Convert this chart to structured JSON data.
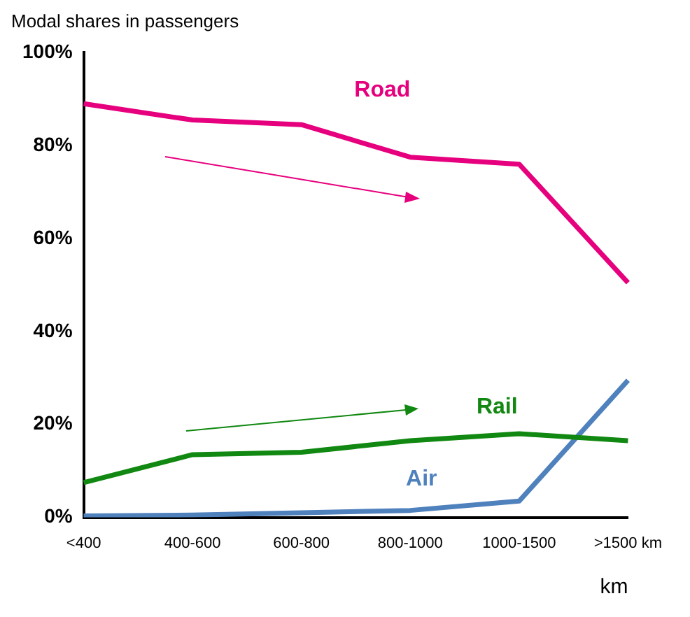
{
  "chart_data": {
    "type": "line",
    "title": "Modal shares in passengers",
    "xlabel": "km",
    "categories": [
      "<400",
      "400-600",
      "600-800",
      "800-1000",
      "1000-1500",
      ">1500 km"
    ],
    "series": [
      {
        "name": "Road",
        "color": "#e6007e",
        "values": [
          89,
          85.5,
          84.5,
          77.5,
          76,
          50.5
        ]
      },
      {
        "name": "Rail",
        "color": "#118811",
        "values": [
          7.5,
          13.5,
          14,
          16.5,
          18,
          16.5
        ]
      },
      {
        "name": "Air",
        "color": "#4f81bd",
        "values": [
          0.3,
          0.5,
          1,
          1.5,
          3.5,
          29.5
        ]
      }
    ],
    "ylim": [
      0,
      100
    ],
    "yticks": [
      {
        "value": 0,
        "label": "0%"
      },
      {
        "value": 20,
        "label": "20%"
      },
      {
        "value": 40,
        "label": "40%"
      },
      {
        "value": 60,
        "label": "60%"
      },
      {
        "value": 80,
        "label": "80%"
      },
      {
        "value": 100,
        "label": "100%"
      }
    ],
    "grid": false,
    "legend": false,
    "marker": "none",
    "line_style": "solid"
  }
}
